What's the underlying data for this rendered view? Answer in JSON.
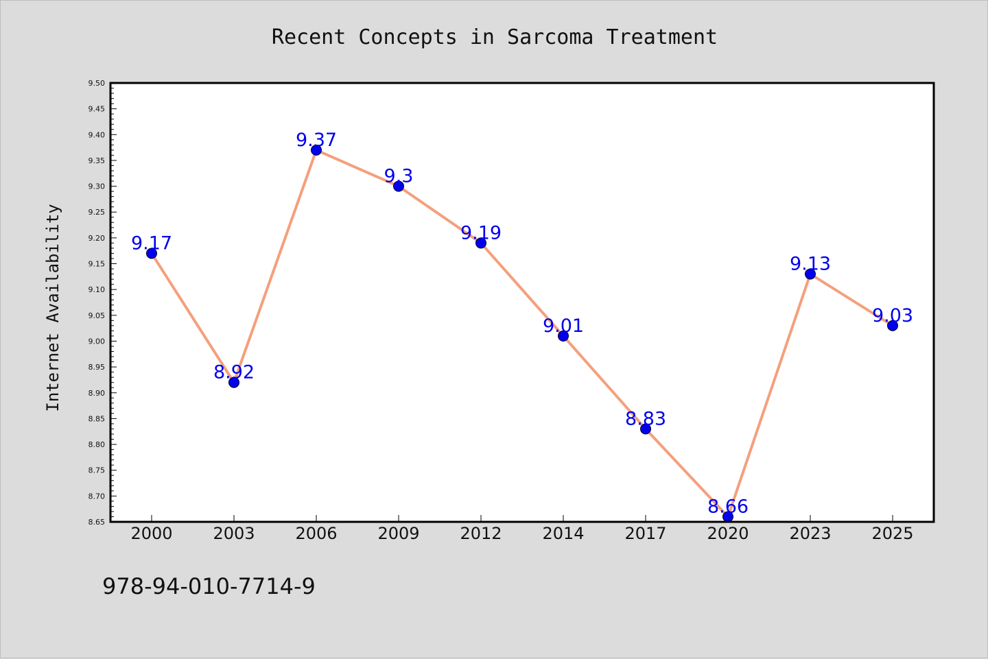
{
  "chart_data": {
    "type": "line",
    "title": "Recent Concepts in Sarcoma Treatment",
    "xlabel": "",
    "ylabel": "Internet Availability",
    "categories": [
      "2000",
      "2003",
      "2006",
      "2009",
      "2012",
      "2014",
      "2017",
      "2020",
      "2023",
      "2025"
    ],
    "series": [
      {
        "values": [
          9.17,
          8.92,
          9.37,
          9.3,
          9.19,
          9.01,
          8.83,
          8.66,
          9.13,
          9.03
        ],
        "data_labels": [
          "9.17",
          "8.92",
          "9.37",
          "9.3",
          "9.19",
          "9.01",
          "8.83",
          "8.66",
          "9.13",
          "9.03"
        ],
        "line_color": "#f4a07c",
        "marker_color": "#0000ee"
      }
    ],
    "ylim": [
      8.65,
      9.5
    ],
    "yticks": [
      "8.65",
      "8.70",
      "8.75",
      "8.80",
      "8.85",
      "8.90",
      "8.95",
      "9.00",
      "9.05",
      "9.10",
      "9.15",
      "9.20",
      "9.25",
      "9.30",
      "9.35",
      "9.40",
      "9.45",
      "9.50"
    ],
    "grid": false,
    "legend": "none"
  },
  "footer": {
    "isbn": "978-94-010-7714-9"
  },
  "colors": {
    "background": "#dcdcdc",
    "plot_background": "#ffffff",
    "line": "#f4a07c",
    "marker": "#0000ee",
    "data_label": "#0000ee",
    "text": "#111111"
  }
}
